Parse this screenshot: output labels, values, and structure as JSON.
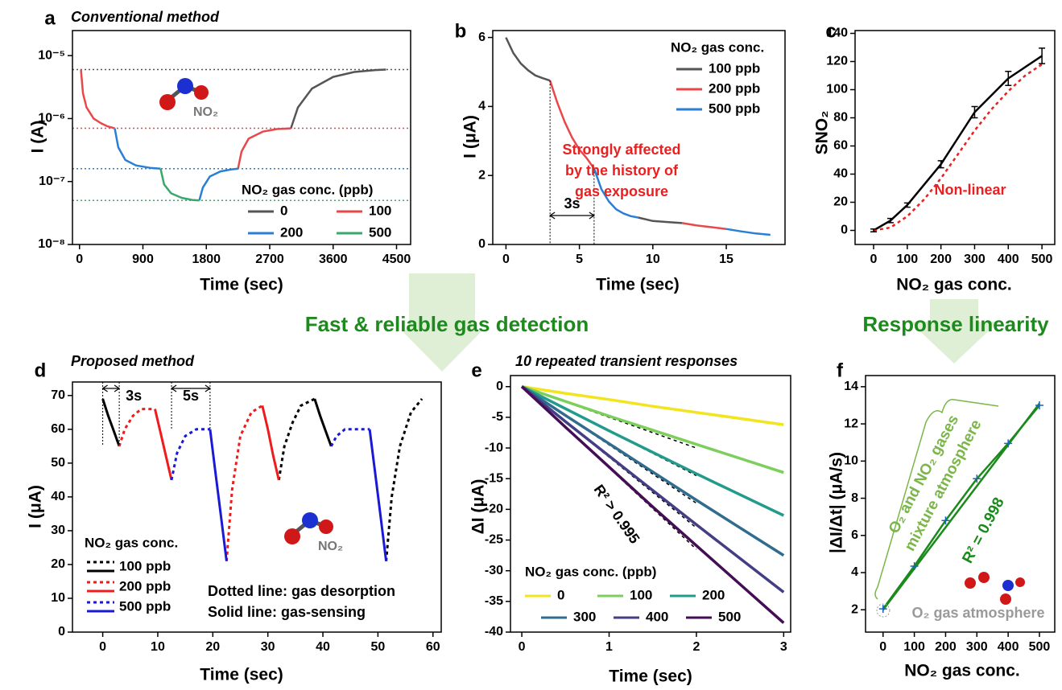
{
  "banners": [
    "Fast & reliable gas detection",
    "Response linearity"
  ],
  "chart_data": [
    {
      "type": "line",
      "panel": "a",
      "title": "Conventional method",
      "x_label": "Time (sec)",
      "y_label": "I (A)",
      "log_y": true,
      "xlim": [
        -100,
        4700
      ],
      "xticks": [
        0,
        900,
        1800,
        2700,
        3600,
        4500
      ],
      "ylim": [
        1e-08,
        2.5e-05
      ],
      "yticks": [
        {
          "value": 1e-08,
          "label": "10⁻⁸"
        },
        {
          "value": 1e-07,
          "label": "10⁻⁷"
        },
        {
          "value": 1e-06,
          "label": "10⁻⁶"
        },
        {
          "value": 1e-05,
          "label": "10⁻⁵"
        }
      ],
      "legend_title": "NO₂ gas conc. (ppb)",
      "molecule_label": "NO₂",
      "series": [
        {
          "name": "0",
          "color": "#555555",
          "x": [
            3000,
            3100,
            3300,
            3600,
            3900,
            4200,
            4350
          ],
          "values": [
            7e-07,
            1.5e-06,
            3e-06,
            4.6e-06,
            5.5e-06,
            5.9e-06,
            6e-06
          ]
        },
        {
          "name": "100",
          "color": "#e8484a",
          "x": [
            20,
            50,
            100,
            200,
            300,
            400,
            500,
            null,
            2250,
            2300,
            2400,
            2600,
            2800,
            3000
          ],
          "values": [
            6e-06,
            2.5e-06,
            1.5e-06,
            1e-06,
            8.5e-07,
            7.5e-07,
            7e-07,
            null,
            1.6e-07,
            3e-07,
            4.8e-07,
            6.2e-07,
            6.8e-07,
            7e-07
          ]
        },
        {
          "name": "200",
          "color": "#2a7fd4",
          "x": [
            500,
            550,
            650,
            800,
            1000,
            1150,
            null,
            1700,
            1750,
            1850,
            2000,
            2150,
            2250
          ],
          "values": [
            7e-07,
            3.5e-07,
            2.2e-07,
            1.8e-07,
            1.65e-07,
            1.6e-07,
            null,
            5e-08,
            8e-08,
            1.2e-07,
            1.45e-07,
            1.55e-07,
            1.6e-07
          ]
        },
        {
          "name": "500",
          "color": "#3aa86b",
          "x": [
            1150,
            1200,
            1300,
            1450,
            1600,
            1700
          ],
          "values": [
            1.6e-07,
            9e-08,
            6.5e-08,
            5.5e-08,
            5.1e-08,
            5e-08
          ]
        }
      ],
      "reference_lines": [
        {
          "value": 6e-06,
          "color": "#555555"
        },
        {
          "value": 7e-07,
          "color": "#e8484a"
        },
        {
          "value": 1.6e-07,
          "color": "#2a7fd4"
        },
        {
          "value": 5e-08,
          "color": "#3aa86b"
        }
      ]
    },
    {
      "type": "line",
      "panel": "b",
      "x_label": "Time (sec)",
      "y_label": "I (μA)",
      "xlim": [
        -0.9,
        19
      ],
      "xticks": [
        0,
        5,
        10,
        15
      ],
      "ylim": [
        0,
        6.2
      ],
      "yticks": [
        0,
        2,
        4,
        6
      ],
      "legend_title": "NO₂ gas conc.",
      "series": [
        {
          "name": "100 ppb",
          "color": "#555555",
          "x": [
            0,
            0.5,
            1,
            1.5,
            2,
            2.5,
            3,
            null,
            9,
            10,
            11,
            12
          ],
          "values": [
            6,
            5.55,
            5.25,
            5.05,
            4.9,
            4.82,
            4.75,
            null,
            0.78,
            0.68,
            0.65,
            0.62
          ]
        },
        {
          "name": "200 ppb",
          "color": "#e8484a",
          "x": [
            3,
            3.5,
            4,
            4.5,
            5,
            5.5,
            6,
            null,
            12,
            13,
            14,
            15
          ],
          "values": [
            4.75,
            4.1,
            3.55,
            3.1,
            2.75,
            2.5,
            2.2,
            null,
            0.62,
            0.55,
            0.5,
            0.45
          ]
        },
        {
          "name": "500 ppb",
          "color": "#2a7fd4",
          "x": [
            6,
            6.5,
            7,
            7.5,
            8,
            8.5,
            9,
            null,
            15,
            16,
            17,
            18
          ],
          "values": [
            2.2,
            1.6,
            1.25,
            1.02,
            0.9,
            0.82,
            0.78,
            null,
            0.45,
            0.38,
            0.32,
            0.28
          ]
        }
      ],
      "guide_x": [
        3,
        6
      ],
      "interval_labels": [
        "3s"
      ],
      "annotation": [
        "Strongly affected",
        "by the history of",
        "gas exposure"
      ]
    },
    {
      "type": "line",
      "panel": "c",
      "x_label": "NO₂ gas conc.",
      "y_label": "SNO₂",
      "xlim": [
        -55,
        538
      ],
      "xticks": [
        0,
        100,
        200,
        300,
        400,
        500
      ],
      "ylim": [
        -10,
        142
      ],
      "yticks": [
        0,
        20,
        40,
        60,
        80,
        100,
        120,
        140
      ],
      "series": [
        {
          "color": "#000000",
          "x": [
            0,
            50,
            100,
            200,
            300,
            400,
            500
          ],
          "values": [
            0,
            7,
            18,
            47,
            84,
            108,
            124
          ],
          "errors": [
            1,
            1.5,
            1.5,
            2.5,
            4,
            5,
            5.5
          ]
        },
        {
          "color": "#e82020",
          "dash": true,
          "x": [
            0,
            50,
            100,
            150,
            200,
            250,
            300,
            350,
            400,
            450,
            500
          ],
          "values": [
            0,
            2,
            10,
            22,
            37,
            54,
            71,
            86,
            99,
            110,
            118
          ]
        }
      ],
      "annotation": [
        "Non-linear"
      ]
    },
    {
      "type": "line",
      "panel": "d",
      "title": "Proposed method",
      "x_label": "Time (sec)",
      "y_label": "I (μA)",
      "xlim": [
        -5.5,
        61.5
      ],
      "xticks": [
        0,
        10,
        20,
        30,
        40,
        50,
        60
      ],
      "ylim": [
        0,
        74
      ],
      "yticks": [
        0,
        10,
        20,
        30,
        40,
        50,
        60,
        70
      ],
      "legend_title": "NO₂ gas conc.",
      "molecule_label": "NO₂",
      "series": [
        {
          "name": "100 ppb",
          "color": "#000000",
          "solid": {
            "x": [
              0,
              1,
              2,
              3,
              null,
              38.5,
              39.5,
              40.5,
              41.5
            ],
            "values": [
              69,
              64,
              59.5,
              55,
              null,
              69,
              64,
              59.5,
              55
            ]
          },
          "dotted": {
            "x": [
              32,
              33,
              34.5,
              36,
              38.5,
              null,
              51.5,
              52.5,
              54,
              56,
              58
            ],
            "values": [
              45,
              55,
              62,
              67,
              69,
              null,
              21,
              40,
              55,
              65,
              69
            ]
          }
        },
        {
          "name": "200 ppb",
          "color": "#ee1c1c",
          "solid": {
            "x": [
              9.5,
              10.5,
              11.5,
              12.5,
              null,
              29,
              30,
              31,
              32
            ],
            "values": [
              66,
              59,
              52,
              45,
              null,
              67,
              60,
              52,
              45
            ]
          },
          "dotted": {
            "x": [
              3,
              4,
              5.5,
              7,
              9.5,
              null,
              22.5,
              23.5,
              25,
              27,
              29
            ],
            "values": [
              55,
              60,
              64,
              66,
              66,
              null,
              21,
              42,
              58,
              65,
              67
            ]
          }
        },
        {
          "name": "500 ppb",
          "color": "#1a1ad6",
          "solid": {
            "x": [
              19.5,
              20.5,
              21.5,
              22.5,
              null,
              48.5,
              49.5,
              50.5,
              51.5
            ],
            "values": [
              60,
              47,
              34,
              21,
              null,
              60,
              47,
              34,
              21
            ]
          },
          "dotted": {
            "x": [
              12.5,
              13.5,
              15,
              17,
              19.5,
              null,
              41.5,
              42.5,
              44,
              46,
              48.5
            ],
            "values": [
              45,
              53,
              58,
              60,
              60,
              null,
              55,
              58,
              60,
              60,
              60
            ]
          }
        }
      ],
      "guide_x": [
        0,
        3,
        12.5,
        19.5
      ],
      "interval_labels": [
        "3s",
        "5s"
      ],
      "annotation": [
        "Dotted line: gas desorption",
        "Solid line: gas-sensing"
      ]
    },
    {
      "type": "line",
      "panel": "e",
      "title": "10 repeated transient responses",
      "x_label": "Time (sec)",
      "y_label": "ΔI (μA)",
      "xlim": [
        -0.13,
        3.08
      ],
      "xticks": [
        0,
        1,
        2,
        3
      ],
      "ylim": [
        -40,
        1.8
      ],
      "yticks": [
        -40,
        -35,
        -30,
        -25,
        -20,
        -15,
        -10,
        -5,
        0
      ],
      "legend_title": "NO₂ gas conc. (ppb)",
      "x": [
        0,
        0.5,
        1,
        1.5,
        2,
        2.5,
        3
      ],
      "series": [
        {
          "name": "0",
          "color": "#f2e51d",
          "values": [
            0,
            -1.1,
            -2.1,
            -3.2,
            -4.2,
            -5.2,
            -6.2
          ]
        },
        {
          "name": "100",
          "color": "#7ccf5b",
          "values": [
            0,
            -2.4,
            -4.8,
            -7.1,
            -9.4,
            -11.7,
            -14
          ]
        },
        {
          "name": "200",
          "color": "#229b8d",
          "values": [
            0,
            -3.6,
            -7.2,
            -10.7,
            -14.2,
            -17.6,
            -21
          ]
        },
        {
          "name": "300",
          "color": "#2f6c8e",
          "values": [
            0,
            -4.7,
            -9.3,
            -13.9,
            -18.5,
            -23,
            -27.5
          ]
        },
        {
          "name": "400",
          "color": "#443e85",
          "values": [
            0,
            -5.7,
            -11.3,
            -16.9,
            -22.5,
            -28,
            -33.5
          ]
        },
        {
          "name": "500",
          "color": "#440d54",
          "values": [
            0,
            -6.6,
            -13.1,
            -19.6,
            -25.9,
            -32.2,
            -38.5
          ]
        }
      ],
      "fits": [
        {
          "x": [
            0,
            2
          ],
          "values": [
            0,
            -4.3
          ]
        },
        {
          "x": [
            0,
            2
          ],
          "values": [
            0,
            -10
          ]
        },
        {
          "x": [
            0,
            2
          ],
          "values": [
            0,
            -14.5
          ]
        },
        {
          "x": [
            0,
            2
          ],
          "values": [
            0,
            -19
          ]
        },
        {
          "x": [
            0,
            2
          ],
          "values": [
            0,
            -23
          ]
        },
        {
          "x": [
            0,
            2
          ],
          "values": [
            0,
            -26.5
          ]
        }
      ],
      "annotation": [
        "R² > 0.995"
      ]
    },
    {
      "type": "line",
      "panel": "f",
      "x_label": "NO₂ gas conc.",
      "y_label": "|ΔI/Δt| (μA/s)",
      "xlim": [
        -56,
        549
      ],
      "xticks": [
        0,
        100,
        200,
        300,
        400,
        500
      ],
      "ylim": [
        0.8,
        14.6
      ],
      "yticks": [
        2,
        4,
        6,
        8,
        10,
        12,
        14
      ],
      "series": [
        {
          "color": "#1a8a1a",
          "markers": true,
          "x": [
            0,
            100,
            200,
            300,
            400,
            500
          ],
          "values": [
            2.05,
            4.35,
            6.8,
            9.05,
            10.95,
            13.0
          ]
        },
        {
          "color": "#1a8a1a",
          "x": [
            0,
            500
          ],
          "values": [
            2.0,
            13.1
          ]
        }
      ],
      "annotation": [
        "O₂ and NO₂ gases",
        "mixture atmosphere",
        "R² = 0.998",
        "O₂ gas atmosphere"
      ]
    }
  ]
}
